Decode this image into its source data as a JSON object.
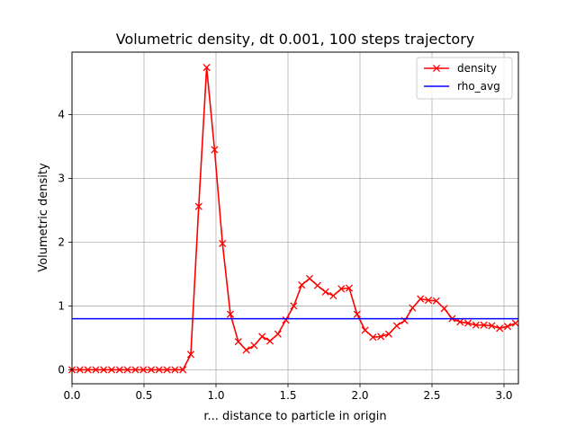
{
  "chart_data": {
    "type": "line",
    "title": "Volumetric density, dt 0.001, 100 steps trajectory",
    "xlabel": "r... distance to particle in origin",
    "ylabel": "Volumetric density",
    "xlim": [
      0.0,
      3.1
    ],
    "ylim": [
      -0.22,
      4.98
    ],
    "xticks": [
      0.0,
      0.5,
      1.0,
      1.5,
      2.0,
      2.5,
      3.0
    ],
    "xtick_labels": [
      "0.0",
      "0.5",
      "1.0",
      "1.5",
      "2.0",
      "2.5",
      "3.0"
    ],
    "yticks": [
      0,
      1,
      2,
      3,
      4
    ],
    "ytick_labels": [
      "0",
      "1",
      "2",
      "3",
      "4"
    ],
    "grid": true,
    "legend_position": "top-right",
    "series": [
      {
        "name": "density",
        "color": "#ff0000",
        "marker": "x",
        "x": [
          0.0,
          0.055,
          0.11,
          0.165,
          0.22,
          0.275,
          0.33,
          0.385,
          0.44,
          0.495,
          0.55,
          0.605,
          0.66,
          0.715,
          0.77,
          0.825,
          0.88,
          0.935,
          0.99,
          1.045,
          1.1,
          1.155,
          1.21,
          1.265,
          1.32,
          1.375,
          1.43,
          1.485,
          1.54,
          1.595,
          1.65,
          1.705,
          1.76,
          1.815,
          1.87,
          1.925,
          1.98,
          2.035,
          2.09,
          2.145,
          2.2,
          2.255,
          2.31,
          2.365,
          2.42,
          2.475,
          2.53,
          2.585,
          2.64,
          2.695,
          2.75,
          2.805,
          2.86,
          2.915,
          2.97,
          3.025,
          3.08
        ],
        "values": [
          0,
          0,
          0,
          0,
          0,
          0,
          0,
          0,
          0,
          0,
          0,
          0,
          0,
          0,
          0,
          0.24,
          2.56,
          4.74,
          3.45,
          1.98,
          0.87,
          0.44,
          0.31,
          0.38,
          0.52,
          0.45,
          0.56,
          0.78,
          1.0,
          1.33,
          1.43,
          1.32,
          1.22,
          1.16,
          1.27,
          1.28,
          0.87,
          0.62,
          0.51,
          0.52,
          0.56,
          0.69,
          0.77,
          0.97,
          1.11,
          1.09,
          1.08,
          0.96,
          0.8,
          0.75,
          0.73,
          0.7,
          0.7,
          0.69,
          0.65,
          0.68,
          0.73
        ]
      },
      {
        "name": "rho_avg",
        "color": "#0000ff",
        "marker": "none",
        "x": [
          0.0,
          3.1
        ],
        "values": [
          0.8,
          0.8
        ]
      }
    ]
  }
}
